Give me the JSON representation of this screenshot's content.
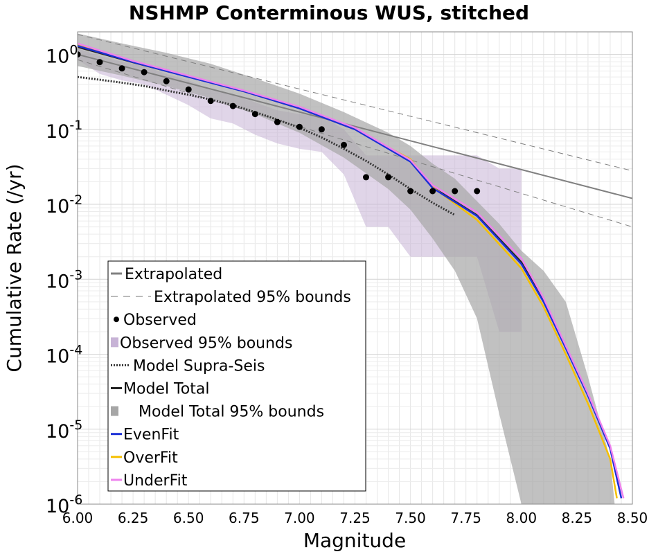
{
  "chart_data": {
    "type": "line",
    "title": "NSHMP Conterminous WUS, stitched",
    "xlabel": "Magnitude",
    "ylabel": "Cumulative Rate (/yr)",
    "xlim": [
      6.0,
      8.5
    ],
    "ylim": [
      1e-06,
      2
    ],
    "y_scale": "log",
    "grid": true,
    "legend_position": "lower-left",
    "x_ticks": [
      {
        "value": 6.0,
        "label": "6.00"
      },
      {
        "value": 6.25,
        "label": "6.25"
      },
      {
        "value": 6.5,
        "label": "6.50"
      },
      {
        "value": 6.75,
        "label": "6.75"
      },
      {
        "value": 7.0,
        "label": "7.00"
      },
      {
        "value": 7.25,
        "label": "7.25"
      },
      {
        "value": 7.5,
        "label": "7.50"
      },
      {
        "value": 7.75,
        "label": "7.75"
      },
      {
        "value": 8.0,
        "label": "8.00"
      },
      {
        "value": 8.25,
        "label": "8.25"
      },
      {
        "value": 8.5,
        "label": "8.50"
      }
    ],
    "y_ticks": [
      {
        "value": 1,
        "base": "10",
        "exp": "0"
      },
      {
        "value": 0.1,
        "base": "10",
        "exp": "-1"
      },
      {
        "value": 0.01,
        "base": "10",
        "exp": "-2"
      },
      {
        "value": 0.001,
        "base": "10",
        "exp": "-3"
      },
      {
        "value": 0.0001,
        "base": "10",
        "exp": "-4"
      },
      {
        "value": 1e-05,
        "base": "10",
        "exp": "-5"
      },
      {
        "value": 1e-06,
        "base": "10",
        "exp": "-6"
      }
    ],
    "legend": [
      {
        "key": "extrapolated",
        "label": "Extrapolated",
        "symbol": "line",
        "color": "#808080"
      },
      {
        "key": "extrap_bounds",
        "label": "Extrapolated 95% bounds",
        "symbol": "dashed",
        "color": "#808080"
      },
      {
        "key": "observed",
        "label": "Observed",
        "symbol": "dot",
        "color": "#000000"
      },
      {
        "key": "obs_bounds",
        "label": "Observed 95% bounds",
        "symbol": "box",
        "color": "#c7b3d6"
      },
      {
        "key": "supra",
        "label": "Model Supra-Seis",
        "symbol": "dotted",
        "color": "#333333"
      },
      {
        "key": "total",
        "label": "Model Total",
        "symbol": "line",
        "color": "#222222"
      },
      {
        "key": "total_bounds",
        "label": "Model Total 95% bounds",
        "symbol": "box",
        "color": "#a6a6a6"
      },
      {
        "key": "evenfit",
        "label": "EvenFit",
        "symbol": "line",
        "color": "#1a2fd6"
      },
      {
        "key": "overfit",
        "label": "OverFit",
        "symbol": "line",
        "color": "#f5c000"
      },
      {
        "key": "underfit",
        "label": "UnderFit",
        "symbol": "line",
        "color": "#ee82ee"
      }
    ],
    "extrapolated": {
      "x": [
        6.0,
        8.5
      ],
      "y": [
        1.0,
        0.012
      ],
      "color": "#808080"
    },
    "extrapolated_upper": {
      "x": [
        6.0,
        8.5
      ],
      "y": [
        1.85,
        0.028
      ],
      "color": "#808080"
    },
    "extrapolated_lower": {
      "x": [
        6.0,
        8.5
      ],
      "y": [
        0.85,
        0.005
      ],
      "color": "#808080"
    },
    "observed": {
      "x": [
        6.0,
        6.1,
        6.2,
        6.3,
        6.4,
        6.5,
        6.6,
        6.7,
        6.8,
        6.9,
        7.0,
        7.1,
        7.2,
        7.3,
        7.4,
        7.5,
        7.6,
        7.7,
        7.8
      ],
      "y": [
        1.0,
        0.79,
        0.65,
        0.58,
        0.44,
        0.34,
        0.24,
        0.205,
        0.16,
        0.125,
        0.108,
        0.1,
        0.062,
        0.023,
        0.023,
        0.015,
        0.015,
        0.015,
        0.015
      ]
    },
    "observed_bounds": {
      "x": [
        6.0,
        6.1,
        6.2,
        6.3,
        6.4,
        6.5,
        6.6,
        6.7,
        6.8,
        6.9,
        7.0,
        7.1,
        7.2,
        7.3,
        7.4,
        7.5,
        7.6,
        7.7,
        7.8,
        7.9,
        8.0
      ],
      "upper": [
        1.2,
        0.95,
        0.8,
        0.7,
        0.55,
        0.45,
        0.34,
        0.29,
        0.23,
        0.18,
        0.16,
        0.15,
        0.1,
        0.045,
        0.045,
        0.045,
        0.045,
        0.045,
        0.045,
        0.03,
        0.03
      ],
      "lower": [
        0.85,
        0.55,
        0.45,
        0.4,
        0.29,
        0.21,
        0.14,
        0.12,
        0.085,
        0.065,
        0.055,
        0.05,
        0.025,
        0.005,
        0.005,
        0.002,
        0.002,
        0.002,
        0.002,
        0.0002,
        0.0002
      ],
      "color": "#c7b3d6"
    },
    "model_total_bounds": {
      "x": [
        6.0,
        6.2,
        6.4,
        6.6,
        6.8,
        7.0,
        7.2,
        7.4,
        7.5,
        7.6,
        7.7,
        7.8,
        7.9,
        8.0,
        8.1,
        8.2,
        8.3,
        8.4,
        8.42,
        8.45
      ],
      "upper": [
        1.9,
        1.4,
        1.05,
        0.75,
        0.48,
        0.3,
        0.17,
        0.09,
        0.06,
        0.035,
        0.022,
        0.011,
        0.0055,
        0.0024,
        0.0013,
        0.0005,
        5e-05,
        4e-06,
        1e-06,
        1e-06
      ],
      "lower": [
        0.7,
        0.52,
        0.38,
        0.26,
        0.16,
        0.09,
        0.042,
        0.016,
        0.0085,
        0.0035,
        0.0013,
        0.0003,
        1.6e-05,
        1e-06,
        1e-06,
        1e-06,
        1e-06,
        1e-06,
        1e-06,
        1e-06
      ],
      "color": "#a6a6a6"
    },
    "series": [
      {
        "name": "Model Supra-Seis",
        "key": "supra",
        "color": "#333333",
        "dash": "dotted",
        "x": [
          6.0,
          6.1,
          6.2,
          6.3,
          6.4,
          6.5,
          6.6,
          6.7,
          6.8,
          6.9,
          7.0,
          7.1,
          7.2,
          7.3,
          7.4,
          7.5,
          7.6,
          7.7
        ],
        "y": [
          0.5,
          0.46,
          0.42,
          0.38,
          0.33,
          0.29,
          0.25,
          0.21,
          0.17,
          0.135,
          0.105,
          0.078,
          0.055,
          0.038,
          0.025,
          0.016,
          0.0105,
          0.0072
        ]
      },
      {
        "name": "Model Total",
        "key": "total",
        "color": "#222222",
        "dash": "solid",
        "x": [
          6.0,
          6.25,
          6.5,
          6.75,
          7.0,
          7.25,
          7.5,
          7.6,
          7.8,
          8.0,
          8.1,
          8.2,
          8.3,
          8.4,
          8.45
        ],
        "y": [
          1.25,
          0.78,
          0.5,
          0.32,
          0.19,
          0.1,
          0.038,
          0.017,
          0.0072,
          0.0017,
          0.00052,
          0.00012,
          2.8e-05,
          5.5e-06,
          1.2e-06
        ]
      },
      {
        "name": "OverFit",
        "key": "overfit",
        "color": "#f5c000",
        "dash": "solid",
        "x": [
          6.0,
          6.25,
          6.5,
          6.75,
          7.0,
          7.25,
          7.5,
          7.6,
          7.8,
          8.0,
          8.1,
          8.2,
          8.3,
          8.4,
          8.43
        ],
        "y": [
          1.35,
          0.8,
          0.51,
          0.32,
          0.19,
          0.1,
          0.04,
          0.017,
          0.0062,
          0.0014,
          0.00043,
          0.0001,
          2.2e-05,
          4e-06,
          1.2e-06
        ]
      },
      {
        "name": "EvenFit",
        "key": "evenfit",
        "color": "#1a2fd6",
        "dash": "solid",
        "x": [
          6.0,
          6.25,
          6.5,
          6.75,
          7.0,
          7.25,
          7.5,
          7.6,
          7.8,
          8.0,
          8.1,
          8.2,
          8.3,
          8.4,
          8.45
        ],
        "y": [
          1.3,
          0.79,
          0.5,
          0.32,
          0.19,
          0.1,
          0.037,
          0.0165,
          0.007,
          0.0016,
          0.0005,
          0.00012,
          2.8e-05,
          5.5e-06,
          1.2e-06
        ]
      },
      {
        "name": "UnderFit",
        "key": "underfit",
        "color": "#ee82ee",
        "dash": "solid",
        "x": [
          6.0,
          6.25,
          6.5,
          6.75,
          7.0,
          7.25,
          7.5,
          7.6,
          7.8,
          8.0,
          8.1,
          8.2,
          8.3,
          8.4,
          8.46
        ],
        "y": [
          1.4,
          0.82,
          0.52,
          0.33,
          0.2,
          0.105,
          0.039,
          0.018,
          0.0078,
          0.0019,
          0.00056,
          0.00013,
          3e-05,
          6e-06,
          1.2e-06
        ]
      }
    ]
  }
}
